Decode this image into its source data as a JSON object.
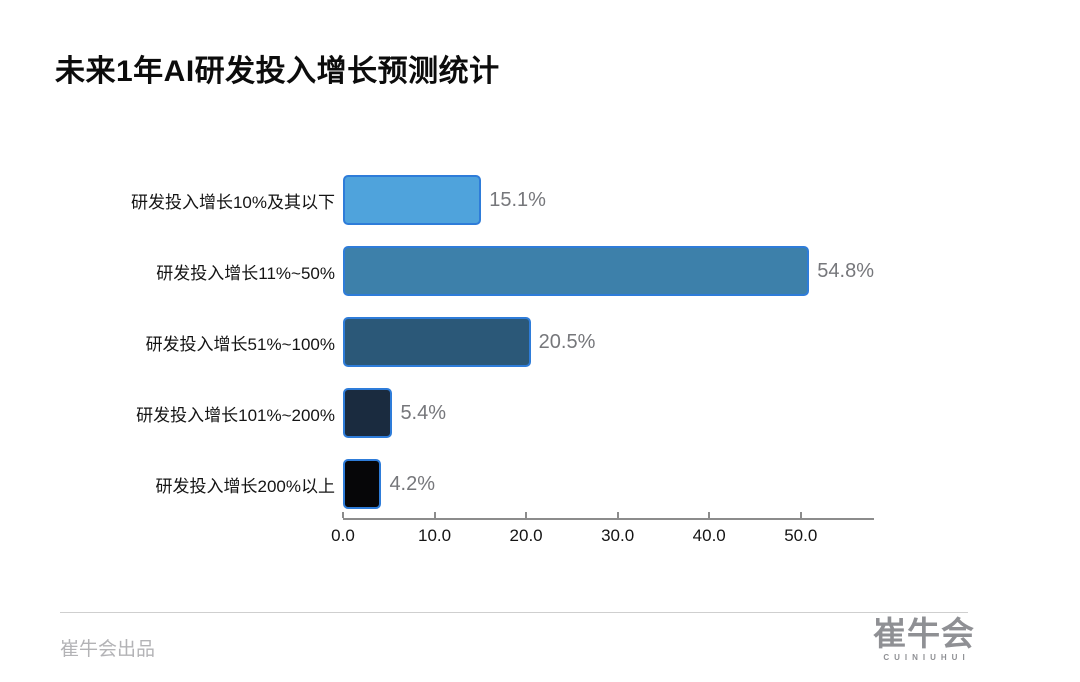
{
  "title": "未来1年AI研发投入增长预测统计",
  "chart_data": {
    "type": "bar",
    "orientation": "horizontal",
    "title": "未来1年AI研发投入增长预测统计",
    "categories": [
      "研发投入增长10%及其以下",
      "研发投入增长11%~50%",
      "研发投入增长51%~100%",
      "研发投入增长101%~200%",
      "研发投入增长200%以上"
    ],
    "values": [
      15.1,
      54.8,
      20.5,
      5.4,
      4.2
    ],
    "value_labels": [
      "15.1%",
      "54.8%",
      "20.5%",
      "5.4%",
      "4.2%"
    ],
    "bar_colors": [
      "#4FA3DC",
      "#3D80AA",
      "#2B5878",
      "#1A2B3F",
      "#060608"
    ],
    "bar_border_color": "#2E7CD9",
    "xtick_values": [
      0,
      10,
      20,
      30,
      40,
      50
    ],
    "xtick_labels": [
      "0.0",
      "10.0",
      "20.0",
      "30.0",
      "40.0",
      "50.0"
    ],
    "xlim": [
      0,
      58
    ],
    "grid": false,
    "legend": null,
    "value_label_color": "#76777B",
    "axis_color": "#8c8c8c"
  },
  "footer": {
    "credit": "崔牛会出品",
    "logo_text": "崔牛会",
    "logo_subtext": "CUINIUHUI"
  }
}
